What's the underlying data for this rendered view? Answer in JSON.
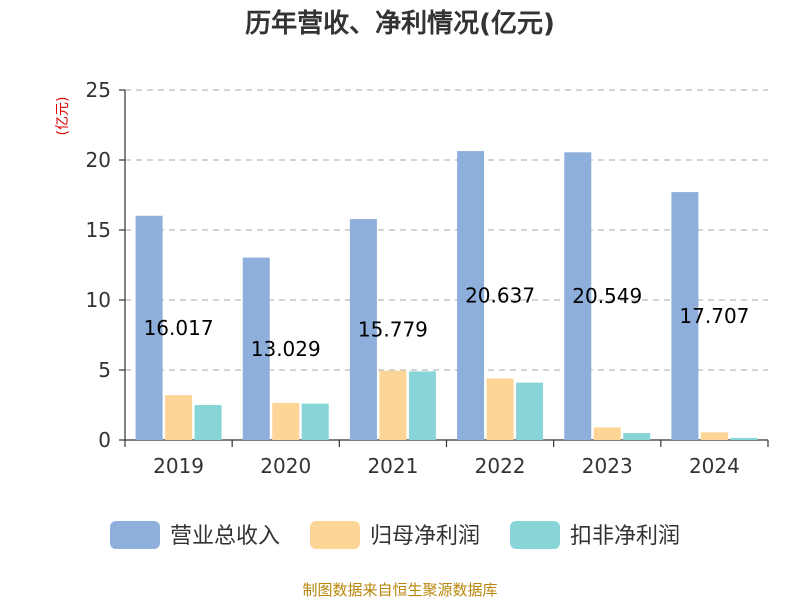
{
  "chart_data": {
    "type": "bar",
    "title": "历年营收、净利情况(亿元)",
    "ylabel": "(亿元)",
    "xlabel": "",
    "categories": [
      "2019",
      "2020",
      "2021",
      "2022",
      "2023",
      "2024"
    ],
    "series": [
      {
        "name": "营业总收入",
        "color": "#8eaedb",
        "values": [
          16.017,
          13.029,
          15.779,
          20.637,
          20.549,
          17.707
        ]
      },
      {
        "name": "归母净利润",
        "color": "#fdd597",
        "values": [
          3.2,
          2.65,
          4.95,
          4.4,
          0.9,
          0.55
        ]
      },
      {
        "name": "扣非净利润",
        "color": "#88d5d8",
        "values": [
          2.5,
          2.6,
          4.9,
          4.1,
          0.5,
          0.15
        ]
      }
    ],
    "data_labels": [
      "16.017",
      "13.029",
      "15.779",
      "20.637",
      "20.549",
      "17.707"
    ],
    "ylim": [
      0,
      25
    ],
    "yticks": [
      "0",
      "5",
      "10",
      "15",
      "20",
      "25"
    ],
    "grid": true,
    "legend_position": "bottom"
  },
  "source": "制图数据来自恒生聚源数据库"
}
